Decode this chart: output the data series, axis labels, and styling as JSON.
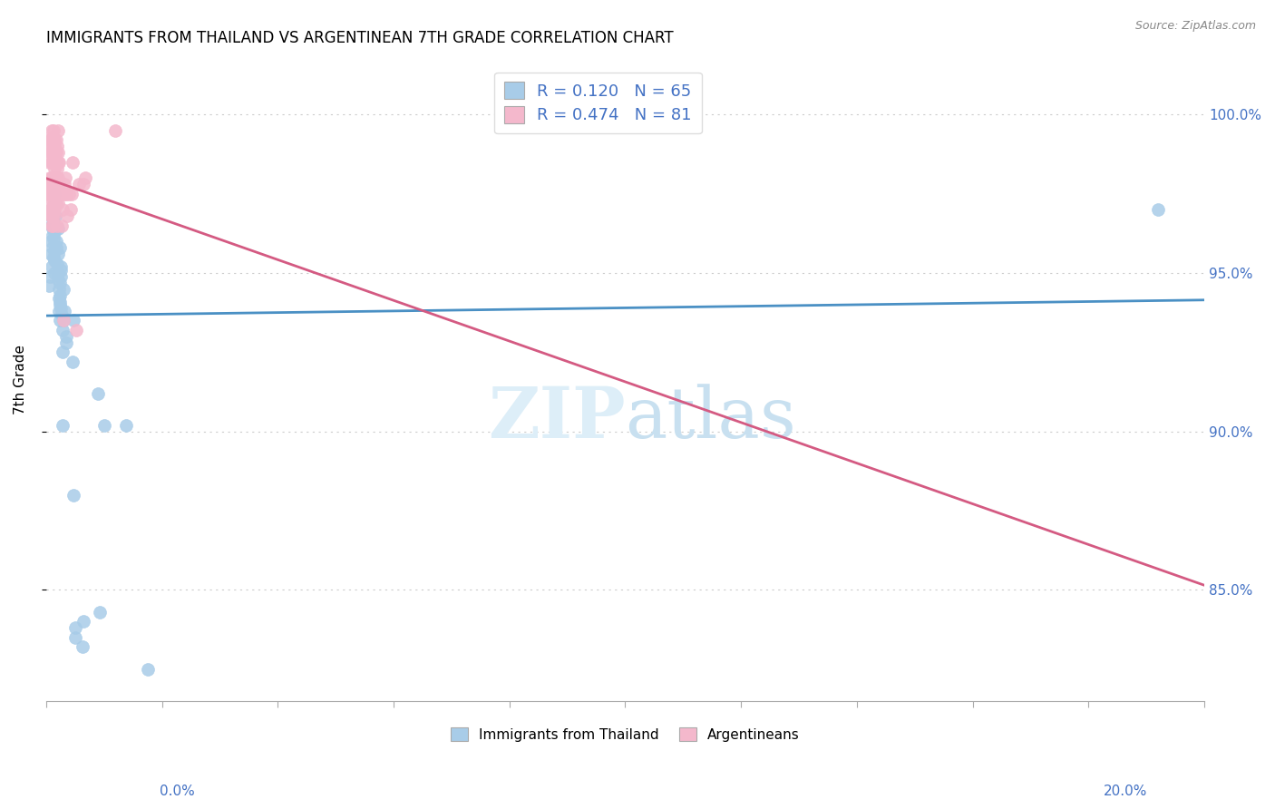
{
  "title": "IMMIGRANTS FROM THAILAND VS ARGENTINEAN 7TH GRADE CORRELATION CHART",
  "source": "Source: ZipAtlas.com",
  "ylabel": "7th Grade",
  "xmin": 0.0,
  "xmax": 20.0,
  "ymin": 81.5,
  "ymax": 101.8,
  "blue_R": 0.12,
  "blue_N": 65,
  "pink_R": 0.474,
  "pink_N": 81,
  "blue_color": "#a8cce8",
  "pink_color": "#f4b8cc",
  "blue_line_color": "#4a90c4",
  "pink_line_color": "#d45a82",
  "legend_label_blue": "Immigrants from Thailand",
  "legend_label_pink": "Argentineans",
  "blue_x": [
    0.05,
    0.07,
    0.08,
    0.08,
    0.09,
    0.09,
    0.1,
    0.1,
    0.1,
    0.11,
    0.11,
    0.12,
    0.12,
    0.12,
    0.13,
    0.13,
    0.14,
    0.14,
    0.15,
    0.15,
    0.15,
    0.16,
    0.16,
    0.17,
    0.18,
    0.19,
    0.2,
    0.2,
    0.21,
    0.21,
    0.22,
    0.22,
    0.22,
    0.23,
    0.23,
    0.24,
    0.24,
    0.24,
    0.24,
    0.25,
    0.25,
    0.26,
    0.26,
    0.27,
    0.28,
    0.28,
    0.29,
    0.3,
    0.3,
    0.31,
    0.35,
    0.35,
    0.45,
    0.47,
    0.48,
    0.5,
    0.51,
    0.63,
    0.65,
    0.9,
    0.92,
    1.0,
    1.38,
    1.75,
    19.2
  ],
  "blue_y": [
    94.6,
    94.9,
    95.6,
    96.0,
    95.2,
    96.5,
    97.0,
    96.5,
    96.8,
    95.8,
    96.2,
    97.1,
    96.4,
    96.7,
    95.5,
    96.1,
    95.4,
    95.7,
    95.0,
    96.3,
    97.5,
    96.8,
    97.2,
    96.0,
    95.8,
    95.3,
    96.4,
    95.0,
    95.6,
    94.8,
    94.2,
    93.8,
    94.5,
    94.0,
    93.5,
    94.7,
    94.3,
    95.8,
    94.1,
    95.2,
    94.9,
    93.9,
    95.1,
    93.7,
    93.2,
    92.5,
    90.2,
    94.5,
    93.5,
    93.8,
    92.8,
    93.0,
    92.2,
    93.5,
    88.0,
    83.5,
    83.8,
    83.2,
    84.0,
    91.2,
    84.3,
    90.2,
    90.2,
    82.5,
    97.0
  ],
  "pink_x": [
    0.04,
    0.05,
    0.05,
    0.06,
    0.06,
    0.07,
    0.07,
    0.07,
    0.08,
    0.08,
    0.08,
    0.08,
    0.09,
    0.09,
    0.09,
    0.09,
    0.1,
    0.1,
    0.1,
    0.1,
    0.1,
    0.11,
    0.11,
    0.11,
    0.11,
    0.12,
    0.12,
    0.12,
    0.12,
    0.12,
    0.13,
    0.13,
    0.13,
    0.13,
    0.14,
    0.14,
    0.14,
    0.14,
    0.15,
    0.15,
    0.15,
    0.15,
    0.16,
    0.16,
    0.17,
    0.17,
    0.17,
    0.18,
    0.18,
    0.18,
    0.19,
    0.19,
    0.19,
    0.19,
    0.2,
    0.2,
    0.2,
    0.21,
    0.21,
    0.21,
    0.22,
    0.22,
    0.24,
    0.26,
    0.27,
    0.28,
    0.3,
    0.31,
    0.32,
    0.33,
    0.35,
    0.36,
    0.39,
    0.43,
    0.44,
    0.46,
    0.52,
    0.56,
    0.65,
    0.68,
    1.2
  ],
  "pink_y": [
    97.5,
    98.5,
    97.8,
    99.0,
    97.0,
    99.2,
    98.0,
    97.5,
    98.8,
    97.8,
    97.0,
    96.8,
    99.5,
    98.5,
    97.5,
    96.8,
    99.2,
    98.8,
    98.0,
    97.3,
    96.5,
    99.0,
    98.5,
    97.8,
    96.5,
    99.3,
    98.8,
    98.0,
    97.5,
    96.8,
    99.5,
    98.8,
    98.0,
    97.2,
    99.2,
    98.5,
    97.8,
    97.0,
    99.0,
    98.3,
    97.5,
    96.8,
    98.8,
    98.0,
    99.2,
    98.5,
    97.5,
    98.8,
    98.0,
    97.2,
    99.0,
    98.3,
    97.5,
    96.5,
    99.5,
    98.5,
    97.8,
    98.8,
    98.0,
    97.2,
    98.5,
    97.8,
    97.5,
    97.5,
    96.5,
    97.0,
    93.5,
    97.5,
    97.8,
    98.0,
    97.5,
    96.8,
    97.5,
    97.0,
    97.5,
    98.5,
    93.2,
    97.8,
    97.8,
    98.0,
    99.5
  ]
}
